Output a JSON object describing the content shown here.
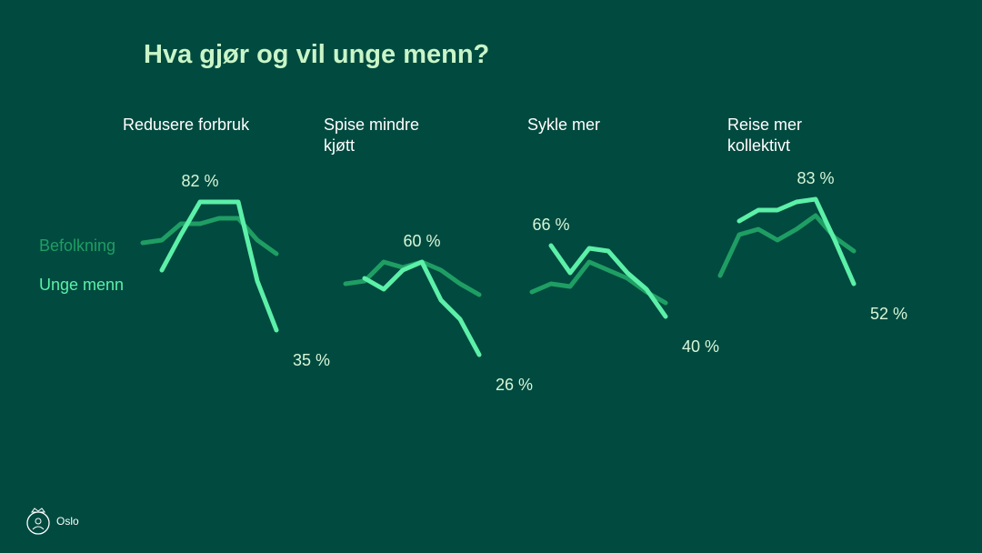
{
  "title": "Hva gjør og vil unge menn?",
  "footer": {
    "logo_text": "Oslo"
  },
  "chart_data": [
    {
      "type": "line",
      "title": "Redusere forbruk",
      "ylim": [
        0,
        100
      ],
      "series": [
        {
          "name": "Befolkning",
          "color": "#1f9e64",
          "values": [
            67,
            68,
            74,
            74,
            76,
            76,
            68,
            63
          ]
        },
        {
          "name": "Unge menn",
          "color": "#5cf0a8",
          "values": [
            null,
            57,
            70,
            82,
            82,
            82,
            53,
            35
          ],
          "value_labels": [
            null,
            null,
            null,
            "82 %",
            null,
            null,
            null,
            "35 %"
          ]
        }
      ]
    },
    {
      "type": "line",
      "title": "Spise mindre kjøtt",
      "ylim": [
        0,
        100
      ],
      "series": [
        {
          "name": "Befolkning",
          "color": "#1f9e64",
          "values": [
            52,
            53,
            60,
            58,
            60,
            57,
            52,
            48
          ]
        },
        {
          "name": "Unge menn",
          "color": "#5cf0a8",
          "values": [
            null,
            54,
            50,
            57,
            60,
            46,
            39,
            26
          ],
          "value_labels": [
            null,
            null,
            null,
            null,
            "60 %",
            null,
            null,
            "26 %"
          ]
        }
      ]
    },
    {
      "type": "line",
      "title": "Sykle mer",
      "ylim": [
        0,
        100
      ],
      "series": [
        {
          "name": "Befolkning",
          "color": "#1f9e64",
          "values": [
            49,
            52,
            51,
            60,
            57,
            54,
            49,
            45
          ]
        },
        {
          "name": "Unge menn",
          "color": "#5cf0a8",
          "values": [
            null,
            66,
            56,
            65,
            64,
            56,
            50,
            40
          ],
          "value_labels": [
            null,
            "66 %",
            null,
            null,
            null,
            null,
            null,
            "40 %"
          ]
        }
      ]
    },
    {
      "type": "line",
      "title": "Reise mer kollektivt",
      "ylim": [
        0,
        100
      ],
      "series": [
        {
          "name": "Befolkning",
          "color": "#1f9e64",
          "values": [
            55,
            70,
            72,
            68,
            72,
            77,
            69,
            64
          ]
        },
        {
          "name": "Unge menn",
          "color": "#5cf0a8",
          "values": [
            null,
            75,
            79,
            79,
            82,
            83,
            68,
            52
          ],
          "value_labels": [
            null,
            null,
            null,
            null,
            null,
            "83 %",
            null,
            "52 %"
          ]
        }
      ]
    }
  ]
}
